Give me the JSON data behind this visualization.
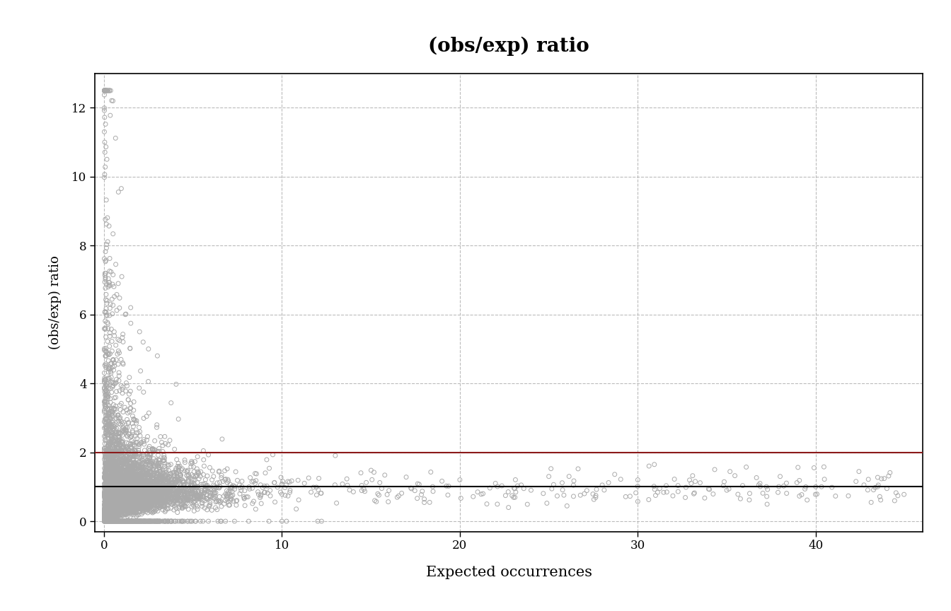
{
  "title": "(obs/exp) ratio",
  "xlabel": "Expected occurrences",
  "ylabel": "(obs/exp) ratio",
  "xlim": [
    -0.5,
    46
  ],
  "ylim": [
    -0.3,
    13
  ],
  "yticks": [
    0,
    2,
    4,
    6,
    8,
    10,
    12
  ],
  "xticks": [
    0,
    10,
    20,
    30,
    40
  ],
  "hline_null": 1.0,
  "hline_null_color": "#000000",
  "hline_threshold": 2.0,
  "hline_threshold_color": "#8B1A1A",
  "scatter_color": "#AAAAAA",
  "scatter_size": 18,
  "background_color": "#FFFFFF",
  "grid_color": "#BBBBBB",
  "grid_style": "dashed",
  "seed": 42,
  "n_points_dense": 5000,
  "n_points_sparse": 200
}
